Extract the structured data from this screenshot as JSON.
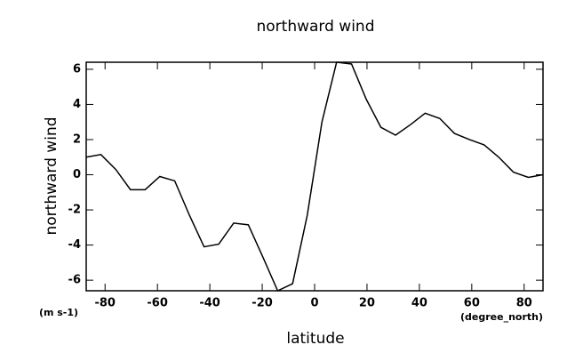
{
  "chart_data": {
    "type": "line",
    "title": "northward wind",
    "xlabel": "latitude",
    "ylabel": "northward wind",
    "x_unit": "(degree_north)",
    "y_unit": "(m s-1)",
    "x": [
      -87.2,
      -81.6,
      -75.9,
      -70.3,
      -64.7,
      -59.1,
      -53.4,
      -47.8,
      -42.2,
      -36.6,
      -30.9,
      -25.3,
      -19.7,
      -14.1,
      -8.4,
      -2.8,
      2.8,
      8.4,
      14.1,
      19.7,
      25.3,
      30.9,
      36.6,
      42.2,
      47.8,
      53.4,
      59.1,
      64.7,
      70.3,
      75.9,
      81.6,
      87.2
    ],
    "series": [
      {
        "name": "northward wind",
        "color": "#000000",
        "values": [
          1.0,
          1.15,
          0.3,
          -0.85,
          -0.85,
          -0.1,
          -0.35,
          -2.3,
          -4.1,
          -3.95,
          -2.75,
          -2.85,
          -4.7,
          -6.6,
          -6.2,
          -2.3,
          3.0,
          6.4,
          6.3,
          4.3,
          2.7,
          2.25,
          2.85,
          3.5,
          3.2,
          2.35,
          2.0,
          1.7,
          1.0,
          0.15,
          -0.15,
          0.0
        ]
      }
    ],
    "xlim": [
      -87.2,
      87.2
    ],
    "ylim": [
      -6.6,
      6.4
    ],
    "xticks": [
      -80,
      -60,
      -40,
      -20,
      0,
      20,
      40,
      60,
      80
    ],
    "yticks": [
      -6,
      -4,
      -2,
      0,
      2,
      4,
      6
    ],
    "grid": false
  }
}
